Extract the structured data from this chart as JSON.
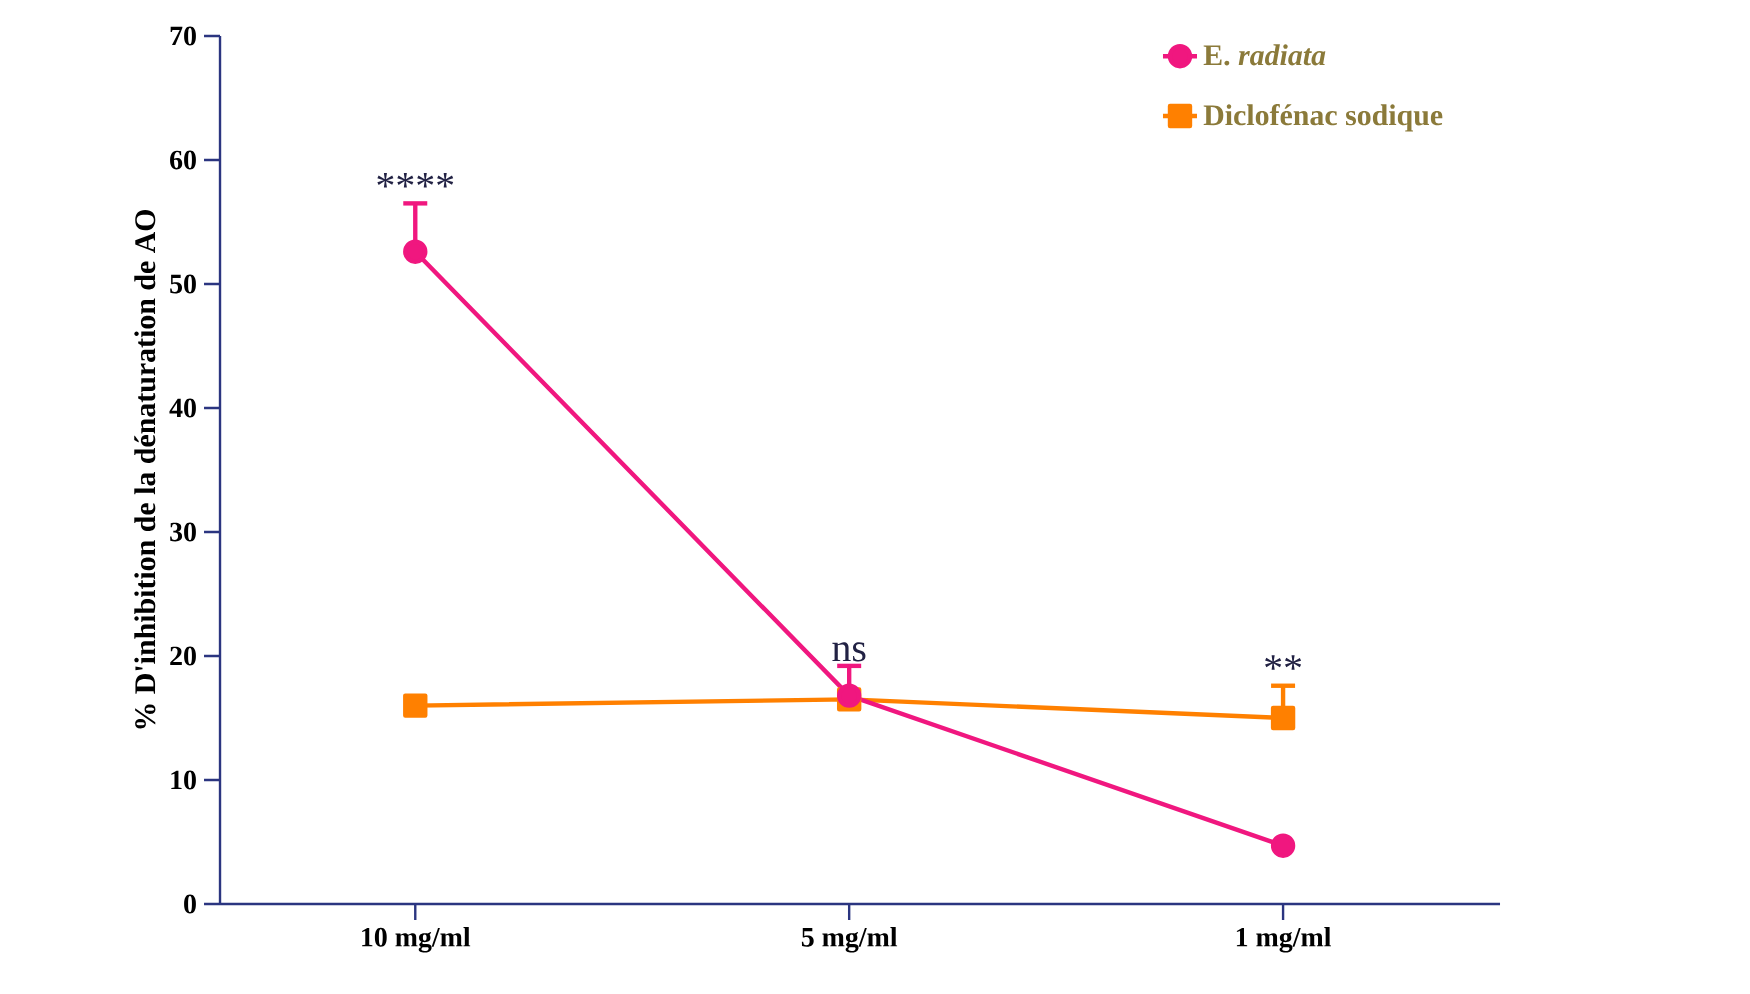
{
  "chart_data": {
    "type": "line",
    "ylabel": "% D'inhibition de la dénaturation de AO",
    "categories": [
      "10 mg/ml",
      "5 mg/ml",
      "1 mg/ml"
    ],
    "series": [
      {
        "name": "E. *radiata*",
        "color": "#f0177f",
        "marker": "circle",
        "values": [
          52.6,
          16.8,
          4.7
        ],
        "errors": [
          3.9,
          2.4,
          null
        ]
      },
      {
        "name": "Diclofénac sodique",
        "color": "#ff8000",
        "marker": "square",
        "values": [
          16.0,
          16.5,
          15.0
        ],
        "errors": [
          null,
          null,
          2.6
        ]
      }
    ],
    "ylim": [
      0,
      70
    ],
    "yticks": [
      0,
      10,
      20,
      30,
      40,
      50,
      60,
      70
    ],
    "legend": "top right",
    "grid": false,
    "annotations": [
      {
        "text": "****",
        "x": "10 mg/ml",
        "y": 56.5
      },
      {
        "text": "ns",
        "x": "5 mg/ml",
        "y": 19.2
      },
      {
        "text": "**",
        "x": "1 mg/ml",
        "y": 17.6
      }
    ]
  }
}
